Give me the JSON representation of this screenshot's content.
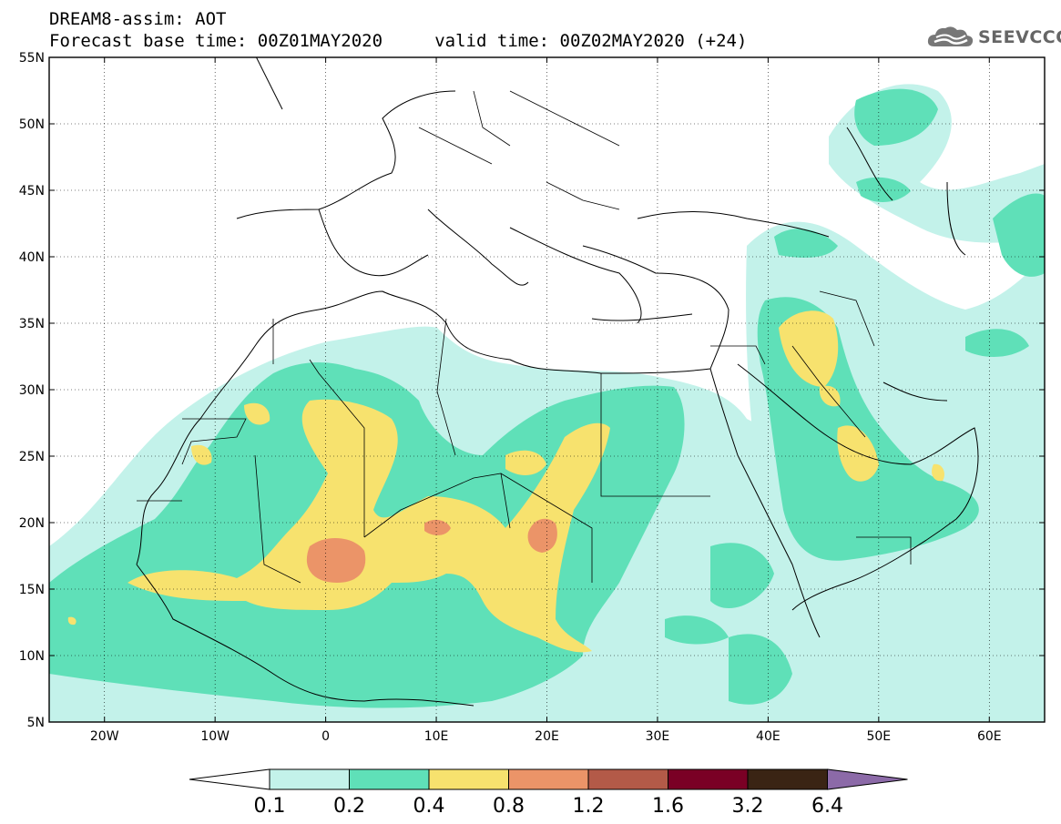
{
  "header": {
    "line1": "DREAM8-assim: AOT",
    "line2": "Forecast base time: 00Z01MAY2020     valid time: 00Z02MAY2020 (+24)",
    "logo_text": "SEEVCCC"
  },
  "map": {
    "lon_range": [
      -25,
      65
    ],
    "lat_range": [
      5,
      55
    ],
    "lat_ticks": [
      "5N",
      "10N",
      "15N",
      "20N",
      "25N",
      "30N",
      "35N",
      "40N",
      "45N",
      "50N",
      "55N"
    ],
    "lon_ticks": [
      "20W",
      "10W",
      "0",
      "10E",
      "20E",
      "30E",
      "40E",
      "50E",
      "60E"
    ],
    "grid": true
  },
  "colorbar": {
    "colors": [
      "#ffffff",
      "#c3f2ea",
      "#5fe0b8",
      "#f7e26e",
      "#eb9468",
      "#b35a48",
      "#7a0025",
      "#3a2414",
      "#8c6aa8"
    ],
    "labels": [
      "0.1",
      "0.2",
      "0.4",
      "0.8",
      "1.2",
      "1.6",
      "3.2",
      "6.4"
    ]
  }
}
